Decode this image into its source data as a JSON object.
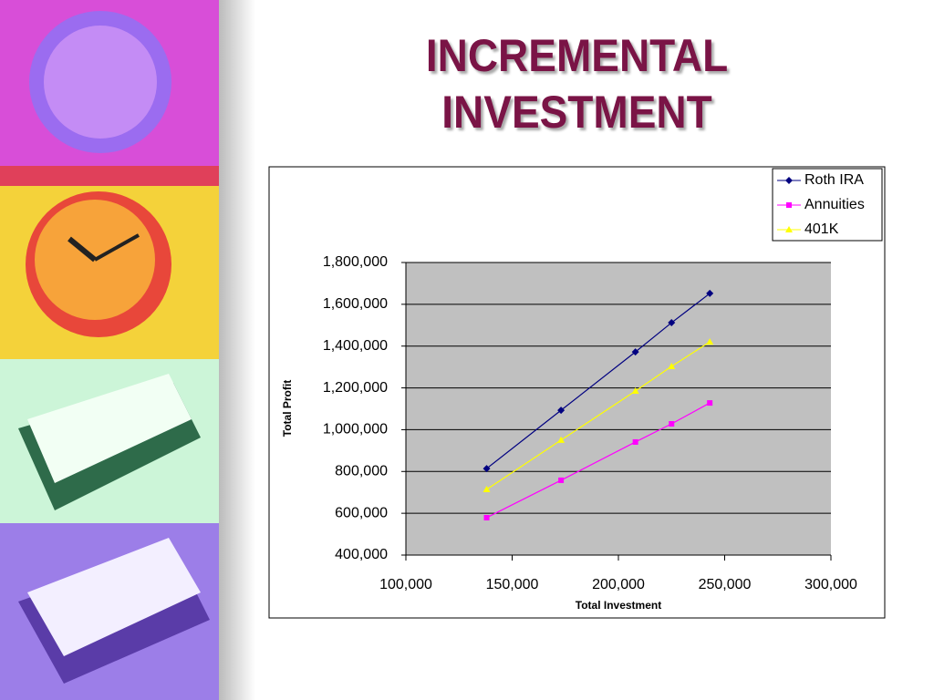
{
  "chart_data": {
    "type": "line",
    "title": "INCREMENTAL INVESTMENT",
    "x_label": "Total Investment",
    "y_label": "Total Profit",
    "x": [
      138000,
      173000,
      208000,
      225000,
      243000
    ],
    "series": [
      {
        "name": "Roth IRA",
        "color": "#000080",
        "marker": "diamond",
        "values": [
          814000,
          1093000,
          1372000,
          1512000,
          1652000
        ]
      },
      {
        "name": "Annuities",
        "color": "#ff00ff",
        "marker": "square",
        "values": [
          579000,
          758000,
          941000,
          1028000,
          1128000
        ]
      },
      {
        "name": "401K",
        "color": "#ffff00",
        "marker": "triangle",
        "values": [
          714000,
          950000,
          1185000,
          1303000,
          1420000
        ]
      }
    ],
    "xlim": [
      100000,
      300000
    ],
    "xticks": [
      {
        "value": 100000,
        "label": "100,000"
      },
      {
        "value": 150000,
        "label": "150,000"
      },
      {
        "value": 200000,
        "label": "200,000"
      },
      {
        "value": 250000,
        "label": "250,000"
      },
      {
        "value": 300000,
        "label": "300,000"
      }
    ],
    "ylim": [
      400000,
      1800000
    ],
    "yticks": [
      {
        "value": 400000,
        "label": "400,000"
      },
      {
        "value": 600000,
        "label": "600,000"
      },
      {
        "value": 800000,
        "label": "800,000"
      },
      {
        "value": 1000000,
        "label": "1,000,000"
      },
      {
        "value": 1200000,
        "label": "1,200,000"
      },
      {
        "value": 1400000,
        "label": "1,400,000"
      },
      {
        "value": 1600000,
        "label": "1,600,000"
      },
      {
        "value": 1800000,
        "label": "1,800,000"
      }
    ],
    "grid": true,
    "legend": "top-right"
  }
}
